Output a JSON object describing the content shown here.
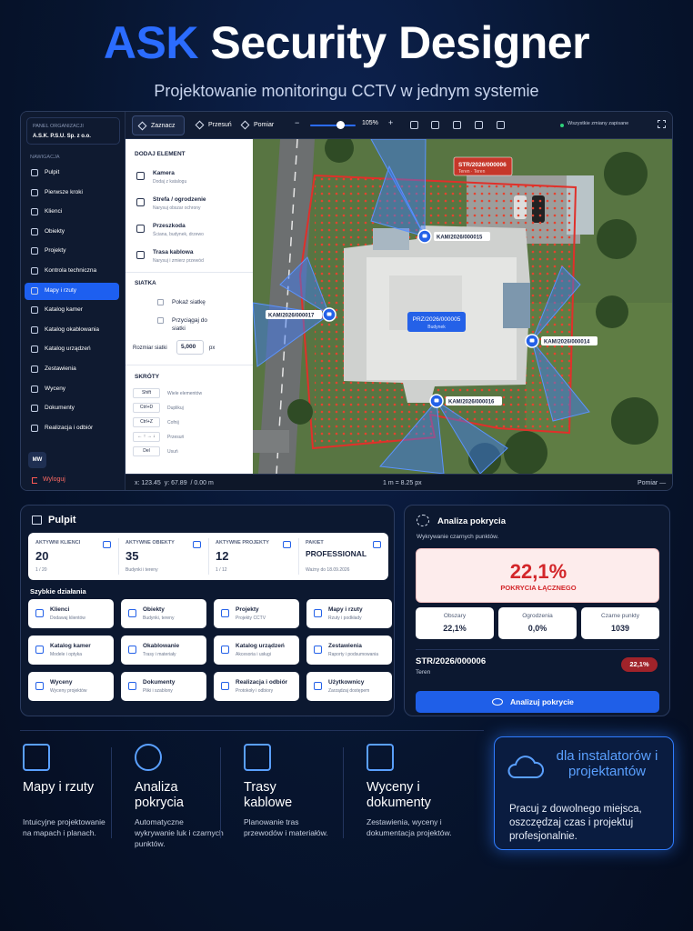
{
  "header": {
    "accent": "ASK",
    "title": "Security Designer",
    "subtitle": "Projektowanie monitoringu CCTV w jednym systemie"
  },
  "sidebar": {
    "org_label": "PANEL ORGANIZACJI",
    "org_name": "A.S.K. P.S.U. Sp. z o.o.",
    "nav_label": "NAWIGACJA",
    "nav": [
      {
        "label": "Pulpit"
      },
      {
        "label": "Pierwsze kroki"
      },
      {
        "label": "Klienci"
      },
      {
        "label": "Obiekty"
      },
      {
        "label": "Projekty"
      },
      {
        "label": "Kontrola techniczna"
      },
      {
        "label": "Mapy i rzuty",
        "active": true
      },
      {
        "label": "Katalog kamer"
      },
      {
        "label": "Katalog okablowania"
      },
      {
        "label": "Katalog urządzeń"
      },
      {
        "label": "Zestawienia"
      },
      {
        "label": "Wyceny"
      },
      {
        "label": "Dokumenty"
      },
      {
        "label": "Realizacja i odbiór"
      }
    ],
    "avatar": "MW",
    "logout": "Wyloguj"
  },
  "toolbar": {
    "tools": [
      {
        "label": "Zaznacz",
        "active": true
      },
      {
        "label": "Przesuń"
      },
      {
        "label": "Pomiar"
      }
    ],
    "zoom_minus": "−",
    "zoom": "105%",
    "zoom_plus": "+",
    "status": "Wszystkie zmiany zapisane"
  },
  "panel": {
    "add_title": "DODAJ ELEMENT",
    "elements": [
      {
        "name": "Kamera",
        "desc": "Dodaj z katalogu"
      },
      {
        "name": "Strefa / ogrodzenie",
        "desc": "Narysuj obszar ochrony"
      },
      {
        "name": "Przeszkoda",
        "desc": "Ściana, budynek, drzewo"
      },
      {
        "name": "Trasa kablowa",
        "desc": "Narysuj i zmierz przewód"
      }
    ],
    "grid_title": "SIATKA",
    "checkboxes": [
      "Pokaż siatkę",
      "Przyciągaj do siatki"
    ],
    "grid_size_label": "Rozmiar siatki",
    "grid_size": "5,000",
    "grid_unit": "px",
    "shortcuts_title": "SKRÓTY",
    "shortcuts": [
      {
        "key": "Shift",
        "desc": "Wiele elementów"
      },
      {
        "key": "Ctrl+D",
        "desc": "Duplikuj"
      },
      {
        "key": "Ctrl+Z",
        "desc": "Cofnij"
      },
      {
        "key": "← ↑ → ↓",
        "desc": "Przesuń"
      },
      {
        "key": "Del",
        "desc": "Usuń"
      }
    ]
  },
  "map": {
    "zone": "STR/2026/000006",
    "zone_sub": "Teren · Teren",
    "building": "PRZ/2026/000005",
    "building_sub": "Budynek",
    "cameras": [
      "KAM/2026/000015",
      "KAM/2026/000017",
      "KAM/2026/000014",
      "KAM/2026/000016"
    ]
  },
  "statusbar": {
    "coords": "x: 123.45  y: 67.89  / 0.00 m",
    "scale": "1 m = 8.25 px",
    "mode": "Pomiar —"
  },
  "dashboard": {
    "title": "Pulpit",
    "stats": [
      {
        "label": "AKTYWNI KLIENCI",
        "value": "20",
        "sub": "1 / 20"
      },
      {
        "label": "AKTYWNE OBIEKTY",
        "value": "35",
        "sub": "Budynki i tereny"
      },
      {
        "label": "AKTYWNE PROJEKTY",
        "value": "12",
        "sub": "1 / 12"
      },
      {
        "label": "PAKIET",
        "value": "PROFESSIONAL",
        "sub": "Ważny do 18.09.2026"
      }
    ],
    "quick_title": "Szybkie działania",
    "quick": [
      {
        "name": "Klienci",
        "desc": "Dodawaj klientów"
      },
      {
        "name": "Obiekty",
        "desc": "Budynki, tereny"
      },
      {
        "name": "Projekty",
        "desc": "Projekty CCTV"
      },
      {
        "name": "Mapy i rzuty",
        "desc": "Rzuty i podkłady"
      },
      {
        "name": "Katalog kamer",
        "desc": "Modele i optyka"
      },
      {
        "name": "Okablowanie",
        "desc": "Trasy i materiały"
      },
      {
        "name": "Katalog urządzeń",
        "desc": "Akcesoria i usługi"
      },
      {
        "name": "Zestawienia",
        "desc": "Raporty i podsumowania"
      },
      {
        "name": "Wyceny",
        "desc": "Wyceny projektów"
      },
      {
        "name": "Dokumenty",
        "desc": "Pliki i szablony"
      },
      {
        "name": "Realizacja i odbiór",
        "desc": "Protokoły i odbiory"
      },
      {
        "name": "Użytkownicy",
        "desc": "Zarządzaj dostępem"
      }
    ]
  },
  "coverage": {
    "title": "Analiza pokrycia",
    "subtitle": "Wykrywanie czarnych punktów.",
    "total": "22,1%",
    "total_label": "POKRYCIA ŁĄCZNEGO",
    "metrics": [
      {
        "label": "Obszary",
        "value": "22,1%"
      },
      {
        "label": "Ogrodzenia",
        "value": "0,0%"
      },
      {
        "label": "Czarne punkty",
        "value": "1039"
      }
    ],
    "area_id": "STR/2026/000006",
    "area_type": "Teren",
    "area_value": "22,1%",
    "button": "Analizuj pokrycie"
  },
  "features": [
    {
      "title": "Mapy i rzuty",
      "desc": "Intuicyjne projektowanie na mapach i planach."
    },
    {
      "title": "Analiza pokrycia",
      "desc": "Automatyczne wykrywanie luk i czarnych punktów."
    },
    {
      "title": "Trasy kablowe",
      "desc": "Planowanie tras przewodów i materiałów."
    },
    {
      "title": "Wyceny i dokumenty",
      "desc": "Zestawienia, wyceny i dokumentacja projektów."
    }
  ],
  "promo": {
    "title": "dla instalatorów i projektantów",
    "text": "Pracuj z dowolnego miejsca, oszczędzaj czas i projektuj profesjonalnie."
  }
}
